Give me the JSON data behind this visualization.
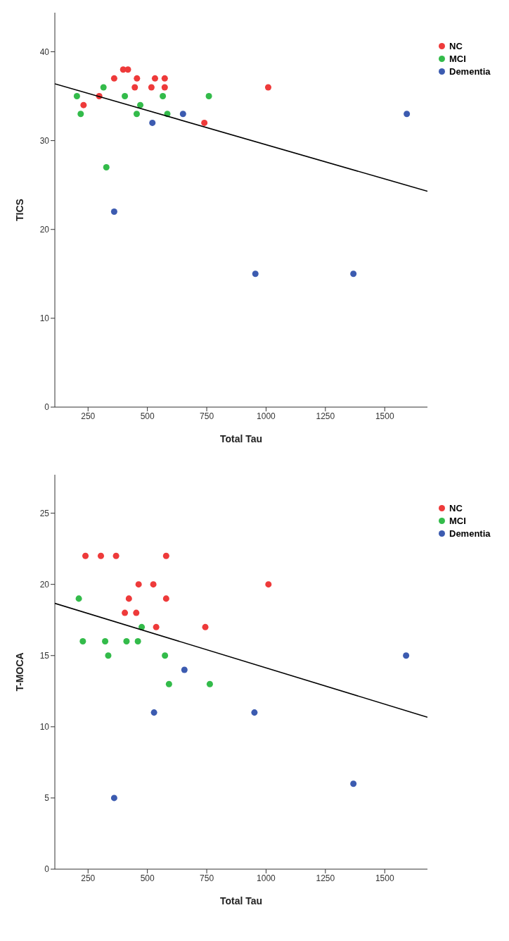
{
  "chart_data": [
    {
      "type": "scatter",
      "xlabel": "Total Tau",
      "ylabel": "TICS",
      "xlim": [
        110,
        1680
      ],
      "xticks": [
        250,
        500,
        750,
        1000,
        1250,
        1500
      ],
      "ylim": [
        0,
        44.4
      ],
      "yticks": [
        0,
        10,
        20,
        30,
        40
      ],
      "legend": "right",
      "marker": "circle",
      "series": [
        {
          "name": "NC",
          "color": "#ee3a3a",
          "x": [
            398,
            418,
            360,
            456,
            532,
            573,
            447,
            517,
            573,
            297,
            231,
            740,
            1009
          ],
          "values": [
            38,
            38,
            37,
            37,
            37,
            37,
            36,
            36,
            36,
            35,
            34,
            32,
            36
          ]
        },
        {
          "name": "MCI",
          "color": "#33bb4a",
          "x": [
            203,
            219,
            315,
            327,
            405,
            470,
            455,
            565,
            584,
            759
          ],
          "values": [
            35,
            33,
            36,
            27,
            35,
            34,
            33,
            35,
            33,
            35
          ]
        },
        {
          "name": "Dementia",
          "color": "#3c5bb0",
          "x": [
            521,
            650,
            360,
            1593,
            1368,
            955
          ],
          "values": [
            32,
            33,
            22,
            33,
            15,
            15
          ]
        },
        {
          "type": "line",
          "color": "#000000",
          "marker": "none",
          "x": [
            110,
            1680
          ],
          "values": [
            36.4,
            24.3
          ]
        }
      ]
    },
    {
      "type": "scatter",
      "xlabel": "Total Tau",
      "ylabel": "T-MOCA",
      "xlim": [
        110,
        1680
      ],
      "xticks": [
        250,
        500,
        750,
        1000,
        1250,
        1500
      ],
      "ylim": [
        0,
        27.7
      ],
      "yticks": [
        0,
        5,
        10,
        15,
        20,
        25
      ],
      "legend": "right",
      "marker": "circle",
      "series": [
        {
          "name": "NC",
          "color": "#ee3a3a",
          "x": [
            239,
            304,
            368,
            579,
            463,
            525,
            1010,
            422,
            579,
            405,
            453,
            537,
            744
          ],
          "values": [
            22,
            22,
            22,
            22,
            20,
            20,
            20,
            19,
            19,
            18,
            18,
            17,
            17
          ]
        },
        {
          "name": "MCI",
          "color": "#33bb4a",
          "x": [
            211,
            476,
            228,
            322,
            412,
            460,
            335,
            574,
            591,
            763
          ],
          "values": [
            19,
            17,
            16,
            16,
            16,
            16,
            15,
            15,
            13,
            13
          ]
        },
        {
          "name": "Dementia",
          "color": "#3c5bb0",
          "x": [
            656,
            528,
            951,
            360,
            1590,
            1368
          ],
          "values": [
            14,
            11,
            11,
            5,
            15,
            6
          ]
        },
        {
          "type": "line",
          "color": "#000000",
          "marker": "none",
          "x": [
            110,
            1680
          ],
          "values": [
            18.67,
            10.67
          ]
        }
      ]
    }
  ]
}
